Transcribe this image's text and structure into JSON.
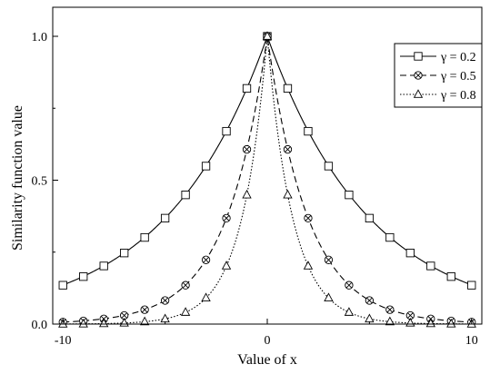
{
  "chart_data": {
    "type": "line",
    "title": "",
    "xlabel": "Value of x",
    "ylabel": "Similarity function value",
    "xlim": [
      -10.5,
      10.5
    ],
    "ylim": [
      0.0,
      1.0
    ],
    "xticks": [
      -10,
      0,
      10
    ],
    "xtick_labels": [
      "-10",
      "0",
      "10"
    ],
    "yticks": [
      0.0,
      0.5,
      1.0
    ],
    "ytick_labels": [
      "0.0",
      "0.5",
      "1.0"
    ],
    "grid": false,
    "legend_position": "top-right",
    "series": [
      {
        "name": "γ = 0.2",
        "marker": "square",
        "line_style": "solid",
        "x": [
          -10,
          -9,
          -8,
          -7,
          -6,
          -5,
          -4,
          -3,
          -2,
          -1,
          0,
          1,
          2,
          3,
          4,
          5,
          6,
          7,
          8,
          9,
          10
        ],
        "values": [
          0.135,
          0.165,
          0.202,
          0.247,
          0.301,
          0.368,
          0.449,
          0.549,
          0.67,
          0.819,
          1.0,
          0.819,
          0.67,
          0.549,
          0.449,
          0.368,
          0.301,
          0.247,
          0.202,
          0.165,
          0.135
        ]
      },
      {
        "name": "γ = 0.5",
        "marker": "circle-x",
        "line_style": "dashed",
        "x": [
          -10,
          -9,
          -8,
          -7,
          -6,
          -5,
          -4,
          -3,
          -2,
          -1,
          0,
          1,
          2,
          3,
          4,
          5,
          6,
          7,
          8,
          9,
          10
        ],
        "values": [
          0.007,
          0.011,
          0.018,
          0.03,
          0.05,
          0.082,
          0.135,
          0.223,
          0.368,
          0.607,
          1.0,
          0.607,
          0.368,
          0.223,
          0.135,
          0.082,
          0.05,
          0.03,
          0.018,
          0.011,
          0.007
        ]
      },
      {
        "name": "γ = 0.8",
        "marker": "triangle",
        "line_style": "dotted",
        "x": [
          -10,
          -9,
          -8,
          -7,
          -6,
          -5,
          -4,
          -3,
          -2,
          -1,
          0,
          1,
          2,
          3,
          4,
          5,
          6,
          7,
          8,
          9,
          10
        ],
        "values": [
          0.0003,
          0.0007,
          0.0017,
          0.0037,
          0.0082,
          0.018,
          0.041,
          0.091,
          0.202,
          0.449,
          1.0,
          0.449,
          0.202,
          0.091,
          0.041,
          0.018,
          0.0082,
          0.0037,
          0.0017,
          0.0007,
          0.0003
        ]
      }
    ]
  }
}
